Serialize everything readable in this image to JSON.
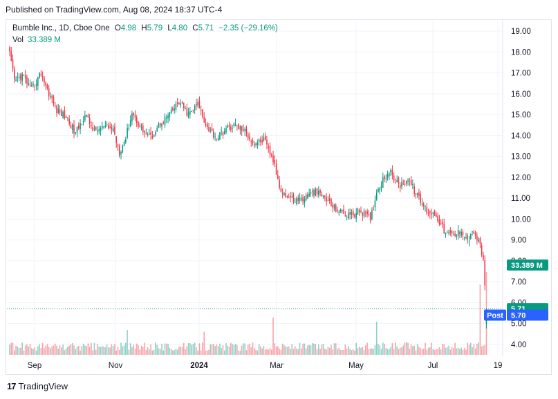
{
  "published": "Published on TradingView.com, Aug 08, 2024 18:37 UTC-4",
  "legend": {
    "symbol": "Bumble Inc., 1D, Cboe One",
    "o_label": "O",
    "o": "4.98",
    "h_label": "H",
    "h": "5.79",
    "l_label": "L",
    "l": "4.80",
    "c_label": "C",
    "c": "5.71",
    "change": "−2.35 (−29.16%)",
    "vol_label": "Vol",
    "vol": "33.389 M"
  },
  "footer": {
    "logo": "17",
    "brand": "TradingView"
  },
  "colors": {
    "up": "#089981",
    "down": "#f23645",
    "post": "#2962ff",
    "grid": "#f0f3fa"
  },
  "chart_data": {
    "type": "candlestick",
    "y_axis_ticks": [
      "19.00",
      "18.00",
      "17.00",
      "16.00",
      "15.00",
      "14.00",
      "13.00",
      "12.00",
      "11.00",
      "10.00",
      "9.00",
      "8.00",
      "7.00",
      "6.00",
      "5.00",
      "4.00"
    ],
    "ylim": [
      3.5,
      19.5
    ],
    "x_axis_ticks": [
      "Sep",
      "Nov",
      "2024",
      "Mar",
      "May",
      "Jul",
      "19"
    ],
    "price_badges": [
      {
        "label": "",
        "value": "33.389 M",
        "price": 7.8,
        "color": "#089981"
      },
      {
        "label": "",
        "value": "5.71",
        "price": 5.71,
        "color": "#089981"
      },
      {
        "label": "Post",
        "value": "5.70",
        "price": 5.4,
        "color": "#2962ff"
      }
    ],
    "last_price_line": 5.71,
    "close_path": [
      [
        0,
        17.9
      ],
      [
        3,
        16.6
      ],
      [
        8,
        16.9
      ],
      [
        14,
        16.2
      ],
      [
        20,
        17.0
      ],
      [
        24,
        16.2
      ],
      [
        30,
        15.2
      ],
      [
        36,
        14.9
      ],
      [
        42,
        14.1
      ],
      [
        48,
        15.0
      ],
      [
        54,
        14.2
      ],
      [
        60,
        14.4
      ],
      [
        66,
        14.3
      ],
      [
        70,
        13.2
      ],
      [
        74,
        13.9
      ],
      [
        78,
        15.1
      ],
      [
        84,
        14.3
      ],
      [
        90,
        13.9
      ],
      [
        96,
        14.6
      ],
      [
        102,
        15.0
      ],
      [
        108,
        15.6
      ],
      [
        114,
        15.0
      ],
      [
        120,
        15.5
      ],
      [
        126,
        14.4
      ],
      [
        132,
        13.9
      ],
      [
        138,
        14.3
      ],
      [
        144,
        14.5
      ],
      [
        150,
        14.2
      ],
      [
        156,
        13.6
      ],
      [
        162,
        13.8
      ],
      [
        168,
        12.8
      ],
      [
        172,
        11.6
      ],
      [
        176,
        11.1
      ],
      [
        182,
        10.9
      ],
      [
        188,
        11.0
      ],
      [
        194,
        11.3
      ],
      [
        200,
        11.1
      ],
      [
        206,
        10.6
      ],
      [
        212,
        10.3
      ],
      [
        218,
        10.2
      ],
      [
        224,
        10.4
      ],
      [
        230,
        10.0
      ],
      [
        234,
        11.3
      ],
      [
        238,
        11.9
      ],
      [
        242,
        12.3
      ],
      [
        248,
        11.6
      ],
      [
        254,
        11.9
      ],
      [
        260,
        11.1
      ],
      [
        266,
        10.4
      ],
      [
        272,
        10.2
      ],
      [
        278,
        9.3
      ],
      [
        284,
        9.2
      ],
      [
        288,
        9.5
      ],
      [
        292,
        9.0
      ],
      [
        296,
        9.4
      ],
      [
        300,
        8.7
      ],
      [
        302,
        8.0
      ],
      [
        304,
        5.71
      ]
    ],
    "volume_spikes": [
      [
        75,
        0.3
      ],
      [
        124,
        0.28
      ],
      [
        168,
        0.45
      ],
      [
        234,
        0.4
      ],
      [
        300,
        0.85
      ],
      [
        304,
        1.0
      ]
    ]
  }
}
